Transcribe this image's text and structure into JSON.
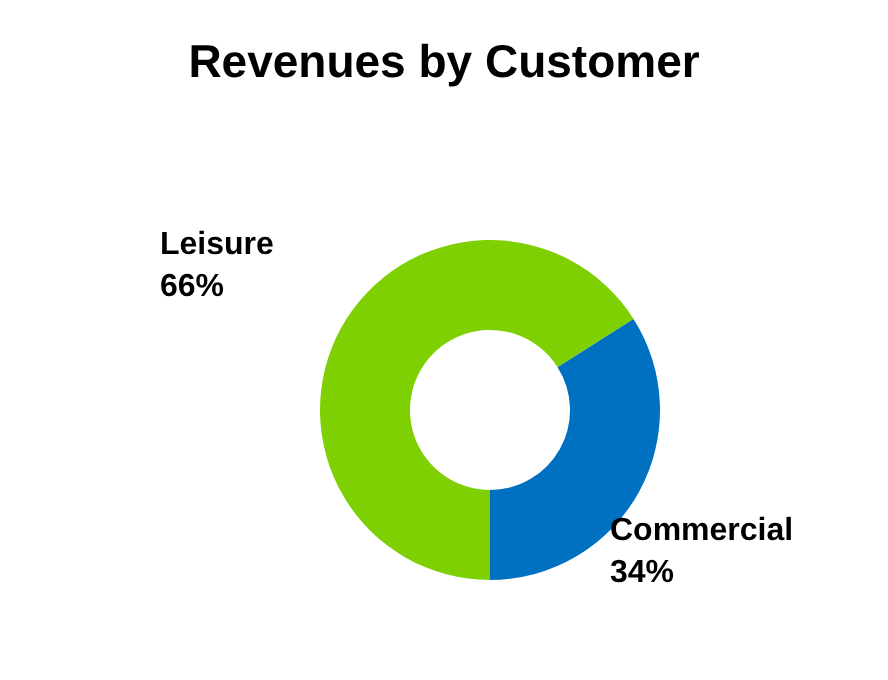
{
  "chart_data": {
    "type": "donut",
    "title": "Revenues by Customer",
    "categories": [
      "Leisure",
      "Commercial"
    ],
    "values": [
      66,
      34
    ],
    "value_labels": [
      "66%",
      "34%"
    ],
    "colors": [
      "#7ed003",
      "#0070c0"
    ],
    "legend": false
  }
}
